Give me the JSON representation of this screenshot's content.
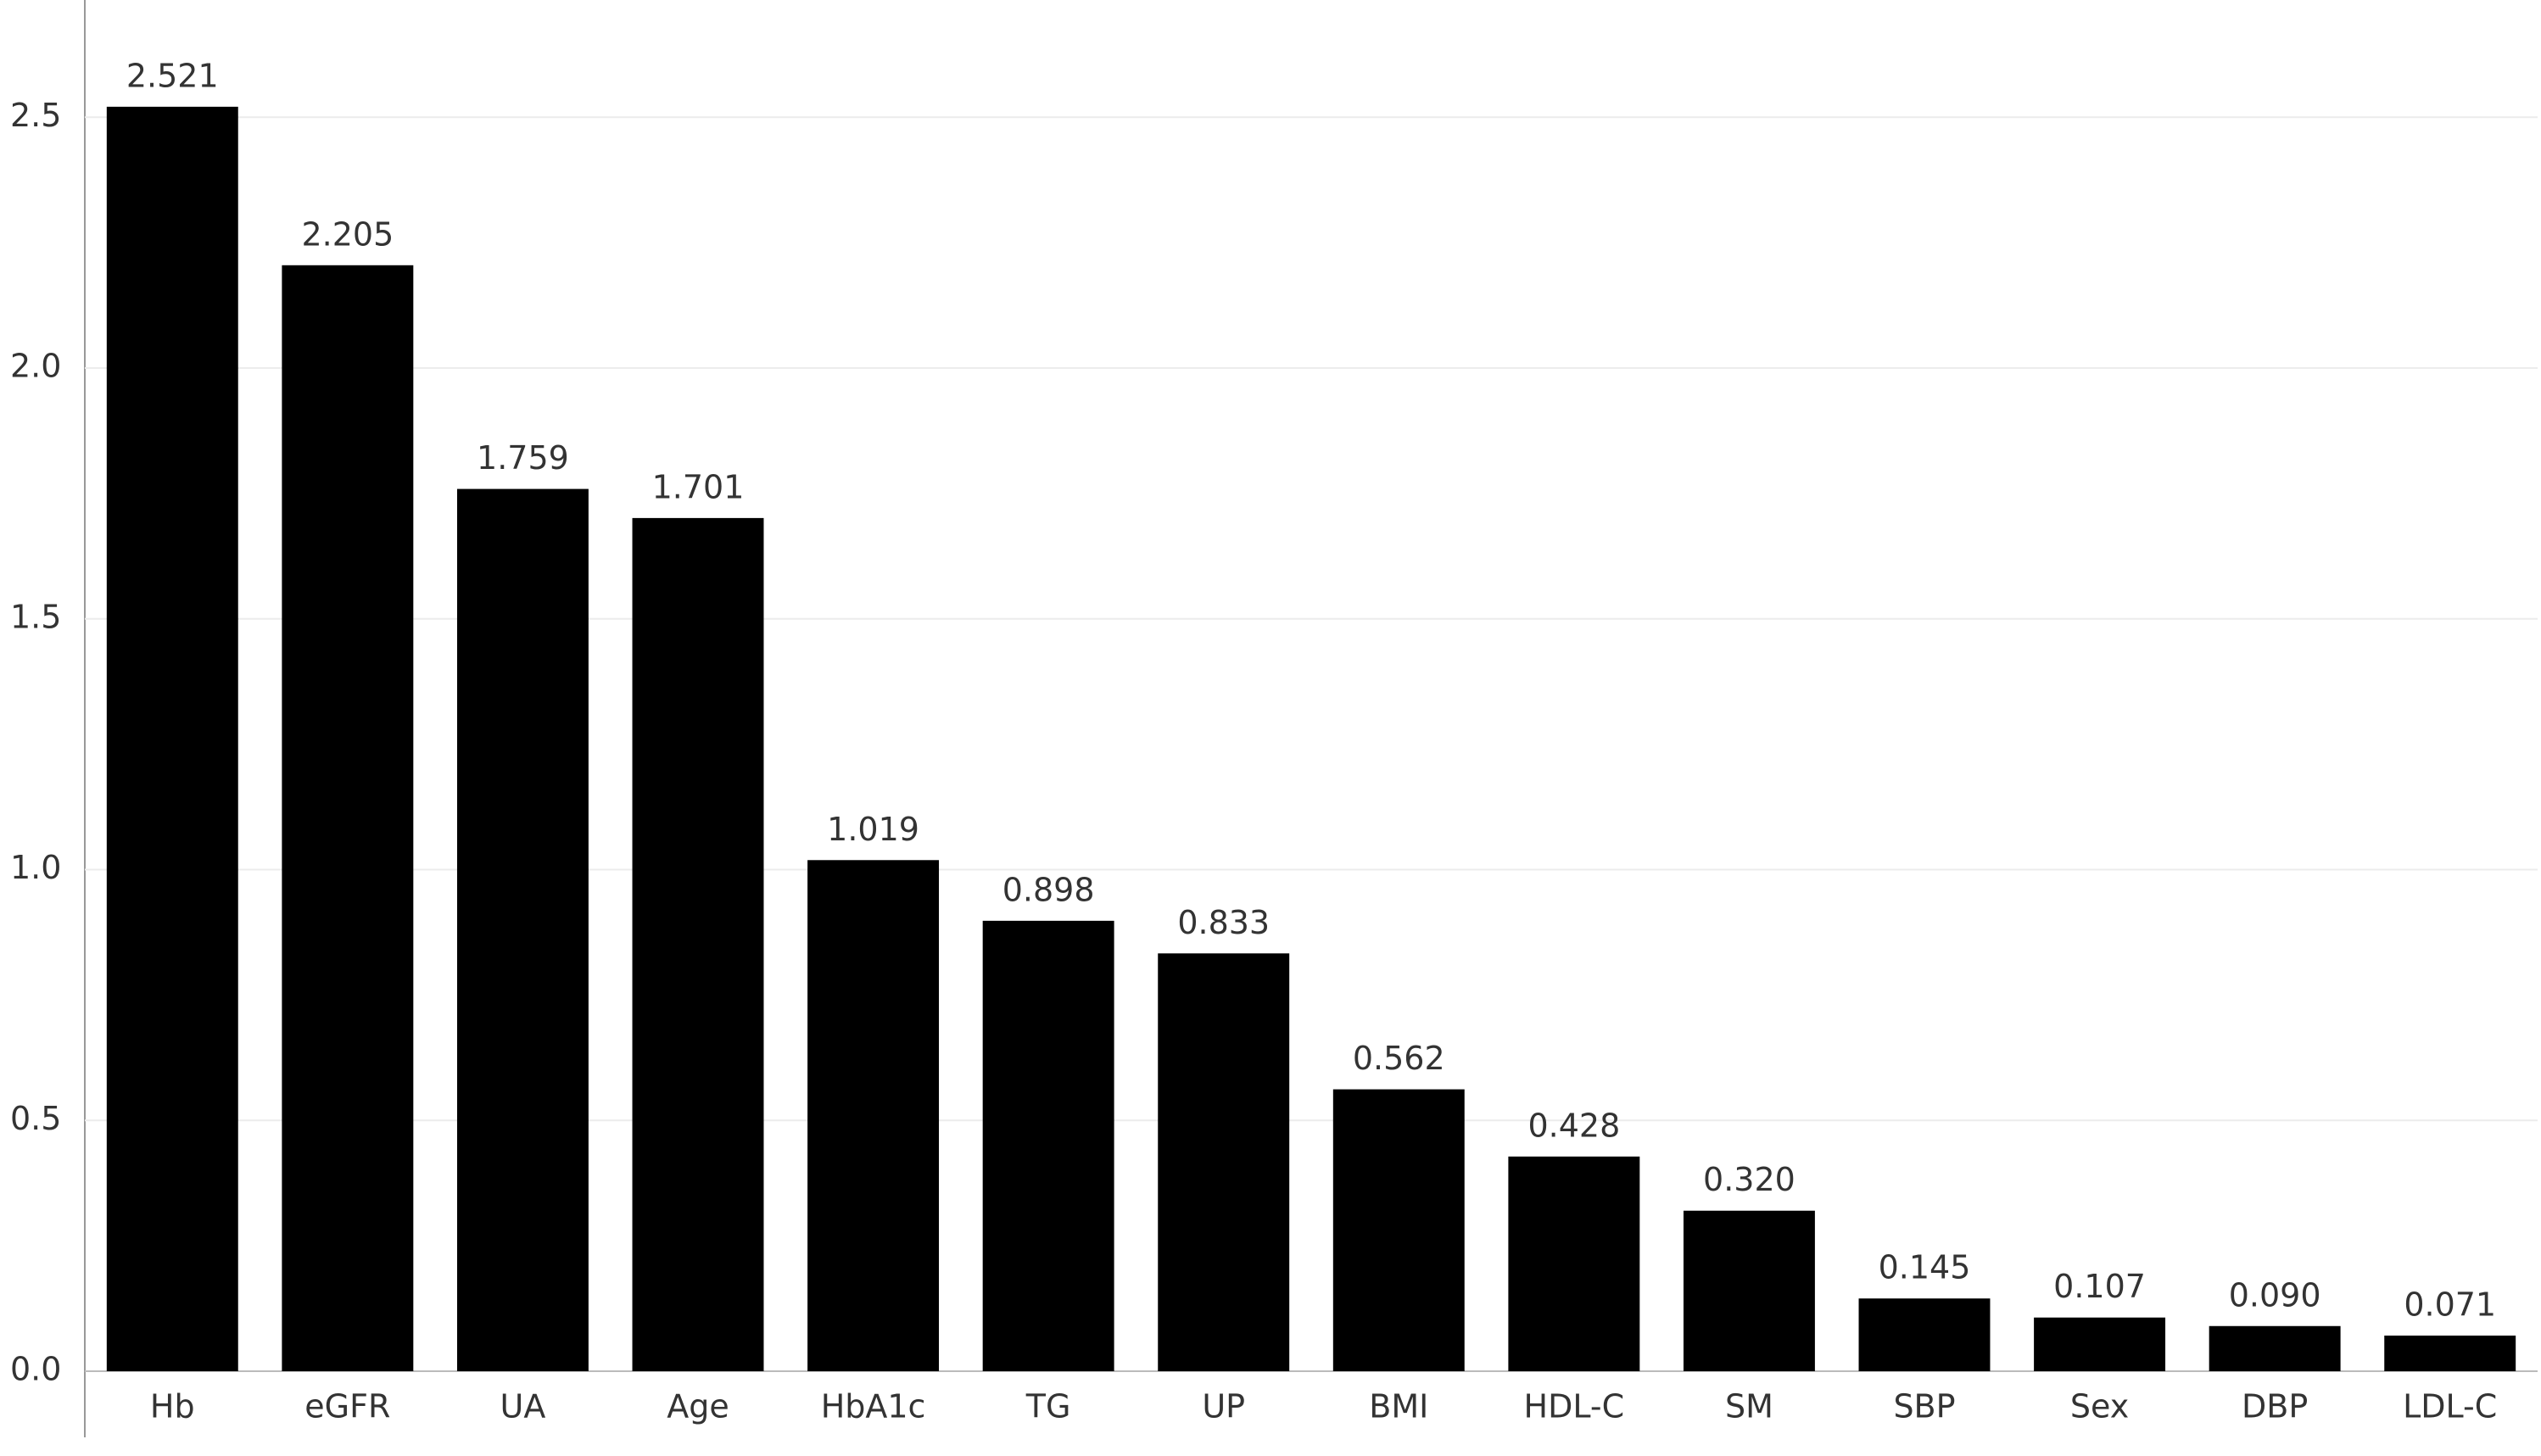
{
  "chart_data": {
    "type": "bar",
    "categories": [
      "Hb",
      "eGFR",
      "UA",
      "Age",
      "HbA1c",
      "TG",
      "UP",
      "BMI",
      "HDL-C",
      "SM",
      "SBP",
      "Sex",
      "DBP",
      "LDL-C"
    ],
    "values": [
      2.521,
      2.205,
      1.759,
      1.701,
      1.019,
      0.898,
      0.833,
      0.562,
      0.428,
      0.32,
      0.145,
      0.107,
      0.09,
      0.071
    ],
    "value_labels": [
      "2.521",
      "2.205",
      "1.759",
      "1.701",
      "1.019",
      "0.898",
      "0.833",
      "0.562",
      "0.428",
      "0.320",
      "0.145",
      "0.107",
      "0.090",
      "0.071"
    ],
    "color": "#000000",
    "ylim": [
      0,
      2.7
    ],
    "yticks": [
      {
        "value": 0,
        "label": "0.0"
      },
      0.5,
      {
        "value": 1,
        "label": "1.0"
      },
      1.5,
      {
        "value": 2,
        "label": "2.0"
      },
      2.5
    ],
    "grid": true
  }
}
